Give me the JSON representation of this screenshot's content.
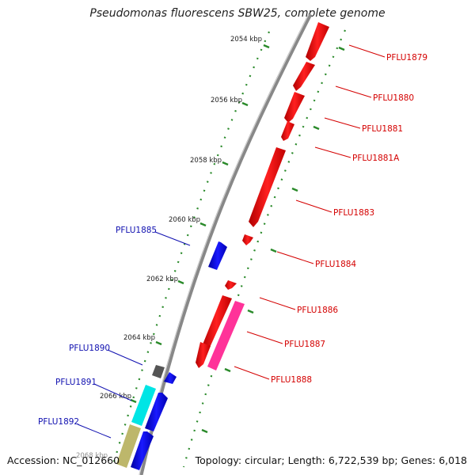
{
  "title": "Pseudomonas fluorescens SBW25, complete genome",
  "accession_text": "Accession: NC_012660",
  "summary_text": "Topology: circular; Length: 6,722,539 bp; Genes: 6,018",
  "colors": {
    "forward": "#ff0000",
    "reverse": "#0000ee",
    "backbone": "#888888",
    "ticks": "#2a8a2a",
    "pink": "#ff3399",
    "cyan": "#00eeee",
    "khaki": "#bdb76b",
    "gray_gene": "#555555"
  },
  "scale_labels": [
    "2054 kbp",
    "2056 kbp",
    "2058 kbp",
    "2060 kbp",
    "2062 kbp",
    "2064 kbp",
    "2066 kbp",
    "2068 kbp"
  ],
  "forward_genes": [
    "PFLU1879",
    "PFLU1880",
    "PFLU1881",
    "PFLU1881A",
    "PFLU1883",
    "PFLU1884",
    "PFLU1886",
    "PFLU1887",
    "PFLU1888"
  ],
  "reverse_genes": [
    "PFLU1885",
    "PFLU1890",
    "PFLU1891",
    "PFLU1892"
  ]
}
